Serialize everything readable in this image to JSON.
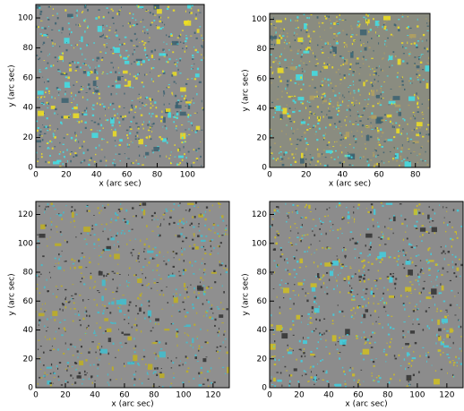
{
  "chart_data": [
    {
      "type": "image",
      "xlabel": "x (arc sec)",
      "ylabel": "y (arc sec)",
      "xlim": [
        0,
        111
      ],
      "ylim": [
        0,
        109
      ],
      "xticks": [
        0,
        20,
        40,
        60,
        80,
        100
      ],
      "yticks": [
        0,
        20,
        40,
        60,
        80,
        100
      ],
      "background": "#8c8c8c",
      "colors": [
        "#f0e020",
        "#40e0e8",
        "#3a6070"
      ]
    },
    {
      "type": "image",
      "xlabel": "x (arc sec)",
      "ylabel": "y (arc sec)",
      "xlim": [
        0,
        88
      ],
      "ylim": [
        0,
        104
      ],
      "xticks": [
        0,
        20,
        40,
        60,
        80
      ],
      "yticks": [
        0,
        20,
        40,
        60,
        80,
        100
      ],
      "background": "#8a8c80",
      "colors": [
        "#f0e020",
        "#40e0e8",
        "#3a6070",
        "#b0a060"
      ]
    },
    {
      "type": "image",
      "xlabel": "x (arc sec)",
      "ylabel": "y (arc sec)",
      "xlim": [
        0,
        131
      ],
      "ylim": [
        0,
        129
      ],
      "xticks": [
        0,
        20,
        40,
        60,
        80,
        100,
        120
      ],
      "yticks": [
        0,
        20,
        40,
        60,
        80,
        100,
        120
      ],
      "background": "#8f8f8f",
      "colors": [
        "#c0b020",
        "#40c0d0",
        "#303030"
      ]
    },
    {
      "type": "image",
      "xlabel": "x (arc sec)",
      "ylabel": "y (arc sec)",
      "xlim": [
        0,
        131
      ],
      "ylim": [
        0,
        129
      ],
      "xticks": [
        0,
        20,
        40,
        60,
        80,
        100,
        120
      ],
      "yticks": [
        0,
        20,
        40,
        60,
        80,
        100,
        120
      ],
      "background": "#8c8c8c",
      "colors": [
        "#d0c020",
        "#40d0e0",
        "#303030"
      ]
    }
  ]
}
